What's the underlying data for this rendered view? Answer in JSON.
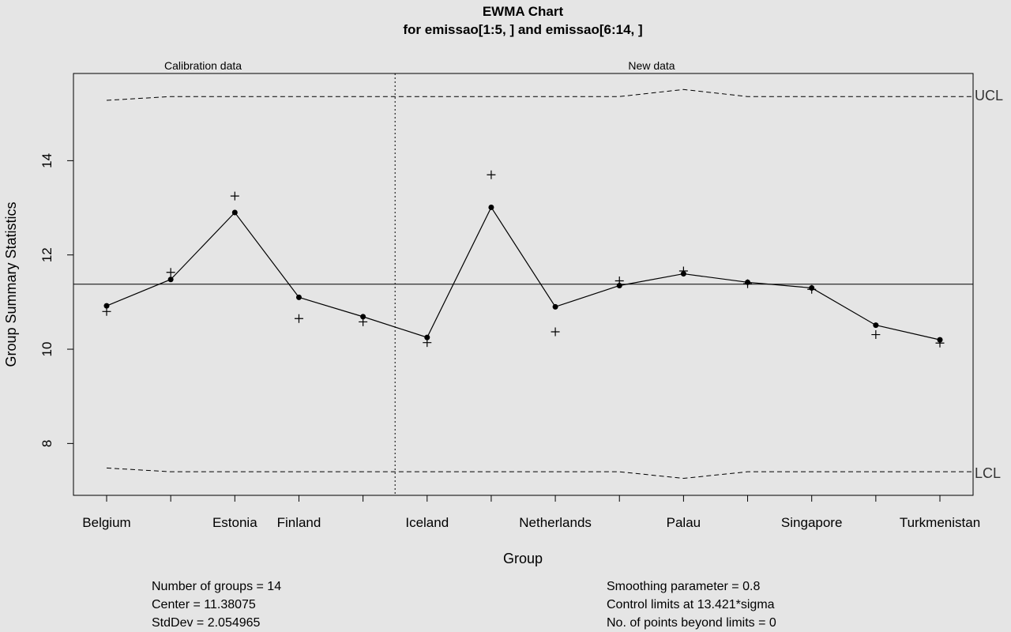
{
  "chart_data": {
    "type": "line",
    "title": "EWMA Chart",
    "subtitle": "for emissao[1:5, ] and emissao[6:14, ]",
    "xlabel": "Group",
    "ylabel": "Group Summary Statistics",
    "sections": {
      "calibration_label": "Calibration data",
      "new_label": "New data",
      "calibration_count": 5
    },
    "ylim": [
      6.9,
      15.85
    ],
    "yticks": [
      "8",
      "10",
      "12",
      "14"
    ],
    "categories": [
      "Belgium",
      "",
      "Estonia",
      "Finland",
      "",
      "Iceland",
      "",
      "Netherlands",
      "",
      "Palau",
      "",
      "Singapore",
      "",
      "Turkmenistan"
    ],
    "center": 11.38,
    "series": [
      {
        "name": "",
        "style": "plus-markers",
        "values": [
          10.8,
          11.63,
          13.25,
          10.65,
          10.58,
          10.14,
          13.7,
          10.37,
          11.45,
          11.66,
          11.39,
          11.27,
          10.31,
          10.13
        ]
      },
      {
        "name": "",
        "style": "line-dots",
        "values": [
          10.92,
          11.48,
          12.9,
          11.1,
          10.69,
          10.25,
          13.01,
          10.9,
          11.35,
          11.6,
          11.42,
          11.3,
          10.51,
          10.2
        ]
      }
    ],
    "ucl": [
      15.28,
      15.36,
      15.36,
      15.36,
      15.36,
      15.36,
      15.36,
      15.36,
      15.36,
      15.51,
      15.36,
      15.36,
      15.36,
      15.36
    ],
    "lcl": [
      7.48,
      7.4,
      7.4,
      7.4,
      7.4,
      7.4,
      7.4,
      7.4,
      7.4,
      7.26,
      7.4,
      7.4,
      7.4,
      7.4
    ],
    "ucl_label": "UCL",
    "lcl_label": "LCL",
    "grid": false
  },
  "stats": {
    "groups": "Number of groups = 14",
    "center": "Center = 11.38075",
    "stddev": "StdDev = 2.054965",
    "smoothing": "Smoothing parameter =  0.8",
    "limits": "Control limits at 13.421*sigma",
    "beyond": "No. of points beyond limits = 0"
  }
}
